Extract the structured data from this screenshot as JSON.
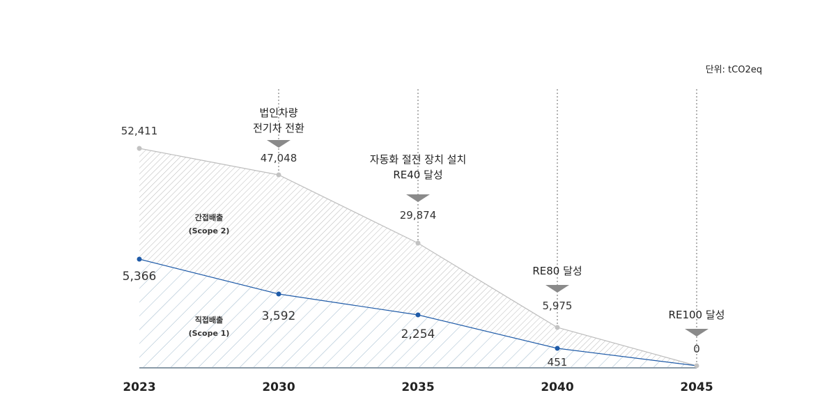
{
  "unit_label": "단위: tCO2eq",
  "chart_data": {
    "type": "area",
    "x": [
      "2023",
      "2030",
      "2035",
      "2040",
      "2045"
    ],
    "series": [
      {
        "name": "간접배출 (Scope 2)",
        "values": [
          52411,
          47048,
          29874,
          5975,
          0
        ],
        "labels": [
          "52,411",
          "47,048",
          "29,874",
          "5,975",
          "0"
        ],
        "color": "#c8c8c8"
      },
      {
        "name": "직접배출 (Scope 1)",
        "values": [
          5366,
          3592,
          2254,
          451,
          0
        ],
        "labels": [
          "5,366",
          "3,592",
          "2,254",
          "451",
          ""
        ],
        "color": "#1f5ba8"
      }
    ],
    "series_labels": [
      {
        "line1": "간접배출",
        "line2": "(Scope 2)"
      },
      {
        "line1": "직접배출",
        "line2": "(Scope 1)"
      }
    ],
    "milestones": [
      {
        "year": "2030",
        "lines": [
          "법인차량",
          "전기차 전환"
        ]
      },
      {
        "year": "2035",
        "lines": [
          "자동화 절전 장치 설치",
          "RE40 달성"
        ]
      },
      {
        "year": "2040",
        "lines": [
          "RE80 달성"
        ]
      },
      {
        "year": "2045",
        "lines": [
          "RE100 달성"
        ]
      }
    ]
  }
}
